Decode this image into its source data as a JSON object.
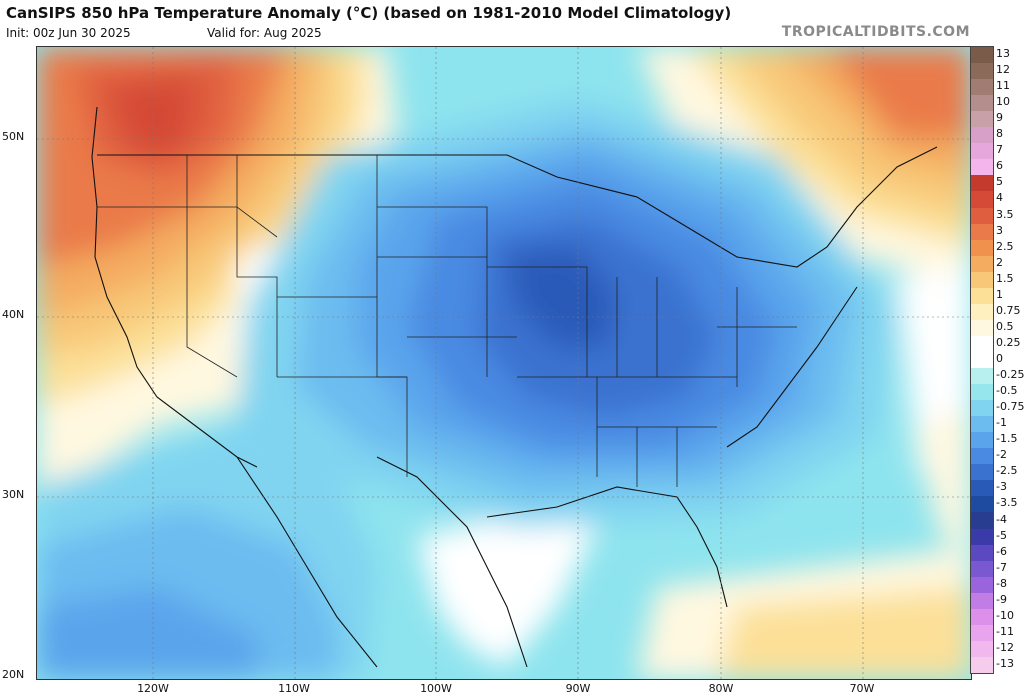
{
  "header": {
    "title": "CanSIPS 850 hPa Temperature Anomaly (°C) (based on 1981-2010 Model Climatology)",
    "init": "Init: 00z Jun 30 2025",
    "valid": "Valid for: Aug 2025",
    "brand": "TROPICALTIDBITS.COM"
  },
  "axes": {
    "latitudes": [
      "50N",
      "40N",
      "30N",
      "20N"
    ],
    "longitudes": [
      "120W",
      "110W",
      "100W",
      "90W",
      "80W",
      "70W"
    ]
  },
  "legend": {
    "labels": [
      "13",
      "12",
      "11",
      "10",
      "9",
      "8",
      "7",
      "6",
      "5",
      "4",
      "3.5",
      "3",
      "2.5",
      "2",
      "1.5",
      "1",
      "0.75",
      "0.5",
      "0.25",
      "0",
      "-0.25",
      "-0.5",
      "-0.75",
      "-1",
      "-1.5",
      "-2",
      "-2.5",
      "-3",
      "-3.5",
      "-4",
      "-5",
      "-6",
      "-7",
      "-8",
      "-9",
      "-10",
      "-11",
      "-12",
      "-13"
    ],
    "colors": [
      "#7a5a48",
      "#8c6a5a",
      "#a07c72",
      "#b48e8c",
      "#c8a0a8",
      "#d6a0c8",
      "#e6a8dc",
      "#f4b4ec",
      "#c43a2c",
      "#d44a36",
      "#e05e40",
      "#ea7a4a",
      "#f0924e",
      "#f4ac60",
      "#f8c878",
      "#fce098",
      "#fff0c0",
      "#fff8e0",
      "#ffffff",
      "#ffffff",
      "#b8f0f0",
      "#96e6ee",
      "#80d4f0",
      "#6cbcf0",
      "#5aa4ec",
      "#4a8ae2",
      "#3a72d0",
      "#2a5ab8",
      "#1e4aa0",
      "#283c90",
      "#3a3aa8",
      "#5c48c0",
      "#7a58d0",
      "#9a64dc",
      "#c27ce6",
      "#dc90ea",
      "#e8a4ec",
      "#f0b8ec",
      "#f6ccec"
    ]
  },
  "map_regions": {
    "warm_anomaly_regions": [
      "Pacific Northwest",
      "Northeast Canada"
    ],
    "cold_anomaly_center": "Upper Mississippi Valley"
  }
}
